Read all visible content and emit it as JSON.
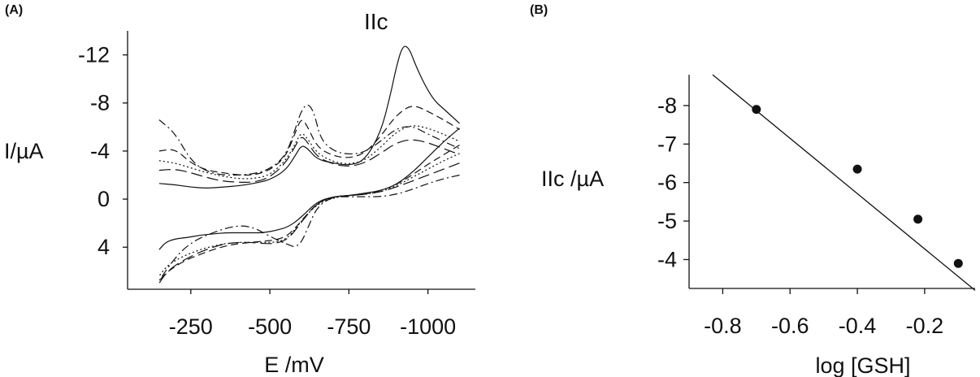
{
  "chart_data": [
    {
      "panel": "(A)",
      "type": "line",
      "xlabel": "E /mV",
      "ylabel": "I/µA",
      "x_ticks": [
        -250,
        -500,
        -750,
        -1000
      ],
      "x_tick_labels": [
        "-250",
        "-500",
        "-750",
        "-1000"
      ],
      "y_ticks": [
        -12,
        -8,
        -4,
        0,
        4
      ],
      "y_tick_labels": [
        "-12",
        "-8",
        "-4",
        "0",
        "4"
      ],
      "xlim": [
        -50,
        -1150
      ],
      "ylim": [
        7.5,
        -14
      ],
      "annotation": "IIc",
      "series": [
        {
          "style": "solid",
          "x": [
            -150,
            -200,
            -250,
            -300,
            -350,
            -400,
            -450,
            -500,
            -550,
            -580,
            -600,
            -620,
            -650,
            -700,
            -750,
            -800,
            -850,
            -880,
            -900,
            -920,
            -940,
            -960,
            -990,
            -1020,
            -1050,
            -1100
          ],
          "y": [
            -1.3,
            -1.2,
            -1.0,
            -0.9,
            -1.0,
            -1.1,
            -1.3,
            -1.6,
            -2.4,
            -3.6,
            -4.5,
            -4.2,
            -3.3,
            -3.0,
            -2.8,
            -3.2,
            -5.5,
            -8.5,
            -11.0,
            -12.8,
            -12.6,
            -11.2,
            -9.5,
            -8.2,
            -7.5,
            -6.3
          ]
        },
        {
          "style": "dash",
          "x": [
            -150,
            -200,
            -250,
            -300,
            -350,
            -400,
            -450,
            -500,
            -550,
            -580,
            -600,
            -620,
            -650,
            -700,
            -750,
            -800,
            -850,
            -900,
            -950,
            -1000,
            -1050,
            -1100
          ],
          "y": [
            -4.0,
            -4.2,
            -3.0,
            -2.4,
            -2.2,
            -2.0,
            -2.0,
            -2.4,
            -3.5,
            -5.5,
            -6.8,
            -6.0,
            -4.3,
            -3.6,
            -3.4,
            -3.8,
            -5.2,
            -7.0,
            -7.9,
            -7.3,
            -6.6,
            -5.8
          ]
        },
        {
          "style": "dot",
          "x": [
            -150,
            -200,
            -250,
            -300,
            -350,
            -400,
            -450,
            -500,
            -550,
            -580,
            -600,
            -620,
            -650,
            -700,
            -750,
            -800,
            -850,
            -900,
            -950,
            -1000,
            -1050,
            -1100
          ],
          "y": [
            -3.2,
            -3.0,
            -2.6,
            -2.2,
            -1.9,
            -1.7,
            -1.7,
            -2.0,
            -3.2,
            -4.6,
            -5.6,
            -5.0,
            -3.8,
            -3.1,
            -2.9,
            -3.2,
            -4.3,
            -5.6,
            -6.2,
            -5.9,
            -5.4,
            -4.8
          ]
        },
        {
          "style": "dashdot",
          "x": [
            -150,
            -200,
            -250,
            -300,
            -350,
            -400,
            -450,
            -500,
            -550,
            -580,
            -600,
            -620,
            -640,
            -660,
            -700,
            -750,
            -800,
            -850,
            -900,
            -950,
            -1000,
            -1050,
            -1100
          ],
          "y": [
            -6.6,
            -5.5,
            -3.2,
            -2.3,
            -2.0,
            -2.0,
            -2.1,
            -2.5,
            -3.6,
            -5.8,
            -7.4,
            -8.0,
            -7.2,
            -5.0,
            -4.0,
            -3.7,
            -3.9,
            -4.8,
            -5.9,
            -6.1,
            -5.4,
            -4.8,
            -4.2
          ]
        },
        {
          "style": "longdash",
          "x": [
            -150,
            -200,
            -250,
            -300,
            -350,
            -400,
            -450,
            -500,
            -550,
            -580,
            -600,
            -620,
            -650,
            -700,
            -750,
            -800,
            -850,
            -900,
            -950,
            -1000,
            -1050,
            -1100
          ],
          "y": [
            -2.4,
            -2.5,
            -2.2,
            -1.8,
            -1.5,
            -1.4,
            -1.4,
            -1.8,
            -3.0,
            -4.4,
            -5.3,
            -4.7,
            -3.5,
            -2.9,
            -2.7,
            -3.0,
            -3.8,
            -4.7,
            -5.0,
            -4.7,
            -4.2,
            -3.7
          ]
        },
        {
          "style": "solid",
          "x": [
            -1100,
            -1050,
            -1000,
            -950,
            -900,
            -850,
            -800,
            -750,
            -700,
            -650,
            -600,
            -560,
            -520,
            -480,
            -440,
            -400,
            -360,
            -320,
            -280,
            -240,
            -200,
            -170,
            -150
          ],
          "y": [
            -5.9,
            -4.8,
            -3.5,
            -2.2,
            -1.2,
            -0.7,
            -0.5,
            -0.3,
            -0.2,
            0.2,
            1.5,
            2.3,
            2.6,
            2.8,
            2.8,
            2.8,
            2.8,
            2.9,
            3.0,
            3.2,
            3.3,
            3.6,
            4.2
          ]
        },
        {
          "style": "dash",
          "x": [
            -1100,
            -1050,
            -1000,
            -950,
            -900,
            -850,
            -800,
            -750,
            -700,
            -650,
            -600,
            -560,
            -520,
            -480,
            -440,
            -400,
            -360,
            -320,
            -280,
            -240,
            -200,
            -170,
            -150
          ],
          "y": [
            -4.5,
            -3.7,
            -2.9,
            -2.0,
            -1.2,
            -0.7,
            -0.4,
            -0.3,
            -0.2,
            0.3,
            1.8,
            3.0,
            3.4,
            3.5,
            3.6,
            3.7,
            3.9,
            4.2,
            4.6,
            5.0,
            5.6,
            6.2,
            6.8
          ]
        },
        {
          "style": "dot",
          "x": [
            -1100,
            -1050,
            -1000,
            -950,
            -900,
            -850,
            -800,
            -750,
            -700,
            -650,
            -600,
            -560,
            -520,
            -480,
            -440,
            -400,
            -360,
            -320,
            -280,
            -240,
            -200,
            -170,
            -150
          ],
          "y": [
            -3.8,
            -3.2,
            -2.5,
            -1.8,
            -1.1,
            -0.6,
            -0.4,
            -0.3,
            -0.1,
            0.4,
            1.8,
            3.2,
            3.6,
            3.6,
            3.6,
            3.6,
            3.7,
            3.9,
            4.2,
            4.6,
            5.1,
            5.7,
            6.4
          ]
        },
        {
          "style": "dashdot",
          "x": [
            -1100,
            -1050,
            -1000,
            -950,
            -900,
            -850,
            -800,
            -750,
            -700,
            -650,
            -620,
            -600,
            -580,
            -560,
            -540,
            -500,
            -460,
            -420,
            -380,
            -340,
            -300,
            -260,
            -220,
            -180,
            -150
          ],
          "y": [
            -2.0,
            -1.7,
            -1.3,
            -0.8,
            -0.4,
            -0.2,
            -0.2,
            -0.2,
            -0.2,
            0.6,
            2.4,
            3.6,
            4.0,
            3.8,
            3.6,
            3.1,
            2.5,
            2.2,
            2.3,
            2.6,
            3.0,
            3.5,
            4.3,
            5.6,
            6.8
          ]
        },
        {
          "style": "longdash",
          "x": [
            -1100,
            -1050,
            -1000,
            -950,
            -900,
            -850,
            -800,
            -750,
            -700,
            -650,
            -600,
            -560,
            -520,
            -480,
            -440,
            -400,
            -360,
            -320,
            -280,
            -240,
            -200,
            -170,
            -150
          ],
          "y": [
            -3.0,
            -2.5,
            -2.0,
            -1.5,
            -1.0,
            -0.6,
            -0.4,
            -0.3,
            -0.2,
            0.3,
            1.9,
            3.3,
            3.7,
            3.7,
            3.6,
            3.6,
            3.7,
            4.0,
            4.4,
            4.9,
            5.5,
            6.2,
            7.0
          ]
        }
      ]
    },
    {
      "panel": "(B)",
      "type": "scatter",
      "xlabel": "log [GSH]",
      "ylabel": "IIc /µA",
      "x_ticks": [
        -0.8,
        -0.6,
        -0.4,
        -0.2
      ],
      "x_tick_labels": [
        "-0.8",
        "-0.6",
        "-0.4",
        "-0.2"
      ],
      "y_ticks": [
        -8,
        -7,
        -6,
        -5,
        -4
      ],
      "y_tick_labels": [
        "-8",
        "-7",
        "-6",
        "-5",
        "-4"
      ],
      "xlim": [
        -0.9,
        -0.05
      ],
      "ylim": [
        -3.25,
        -8.8
      ],
      "x": [
        -0.7,
        -0.4,
        -0.22,
        -0.1
      ],
      "y": [
        -7.9,
        -6.35,
        -5.05,
        -3.9
      ],
      "fit_line": {
        "x": [
          -0.83,
          -0.05
        ],
        "y": [
          -8.8,
          -3.2
        ]
      }
    }
  ]
}
